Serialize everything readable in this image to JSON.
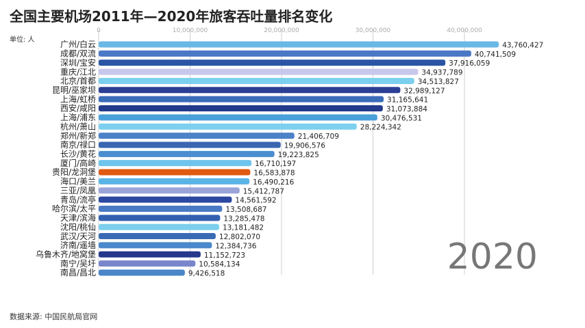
{
  "title": "全国主要机场2011年—2020年旅客吞吐量排名变化",
  "unit": "单位: 人",
  "source": "数据来源: 中国民航局官网",
  "year": "2020",
  "chart_data": {
    "type": "bar",
    "orientation": "horizontal",
    "title": "全国主要机场2011年—2020年旅客吞吐量排名变化",
    "ylabel": "单位: 人",
    "xlim": [
      0,
      45000000
    ],
    "xticks": [
      0,
      10000000,
      20000000,
      30000000,
      40000000
    ],
    "xtick_labels": [
      "0",
      "10,000,000",
      "20,000,000",
      "30,000,000",
      "40,000,000"
    ],
    "tick_position": "top",
    "grid": true,
    "categories": [
      "广州/白云",
      "成都/双流",
      "深圳/宝安",
      "重庆/江北",
      "北京/首都",
      "昆明/巫家坝",
      "上海/虹桥",
      "西安/咸阳",
      "上海/浦东",
      "杭州/萧山",
      "郑州/新郑",
      "南京/禄口",
      "长沙/黄花",
      "厦门/高崎",
      "贵阳/龙洞堡",
      "海口/美兰",
      "三亚/凤凰",
      "青岛/流亭",
      "哈尔滨/太平",
      "天津/滨海",
      "沈阳/桃仙",
      "武汉/天河",
      "济南/遥墙",
      "乌鲁木齐/地窝堡",
      "南宁/吴圩",
      "南昌/昌北"
    ],
    "values": [
      43760427,
      40741509,
      37916059,
      34937789,
      34513827,
      32989127,
      31165641,
      31073884,
      30476531,
      28224342,
      21406709,
      19906576,
      19223825,
      16710197,
      16583878,
      16490216,
      15412787,
      14561592,
      13508687,
      13285478,
      13181482,
      12802070,
      12384736,
      11152723,
      10584134,
      9426518
    ],
    "value_labels": [
      "43,760,427",
      "40,741,509",
      "37,916,059",
      "34,937,789",
      "34,513,827",
      "32,989,127",
      "31,165,641",
      "31,073,884",
      "30,476,531",
      "28,224,342",
      "21,406,709",
      "19,906,576",
      "19,223,825",
      "16,710,197",
      "16,583,878",
      "16,490,216",
      "15,412,787",
      "14,561,592",
      "13,508,687",
      "13,285,478",
      "13,181,482",
      "12,802,070",
      "12,384,736",
      "11,152,723",
      "10,584,134",
      "9,426,518"
    ],
    "colors": [
      "#6ab8e6",
      "#4a78c4",
      "#2a55a4",
      "#c8c8ec",
      "#7cd0ee",
      "#2a3f94",
      "#3a6cba",
      "#243a8c",
      "#4aa0da",
      "#7cd0ee",
      "#4c82c8",
      "#3a66b0",
      "#4a8ed0",
      "#6ec4ec",
      "#e05a10",
      "#5ab4e6",
      "#9aa4d8",
      "#2c48a0",
      "#4a7ac4",
      "#3460b0",
      "#7cd0ee",
      "#3a6ab4",
      "#4a88cc",
      "#24388c",
      "#7a86cc",
      "#4a86c8"
    ]
  }
}
